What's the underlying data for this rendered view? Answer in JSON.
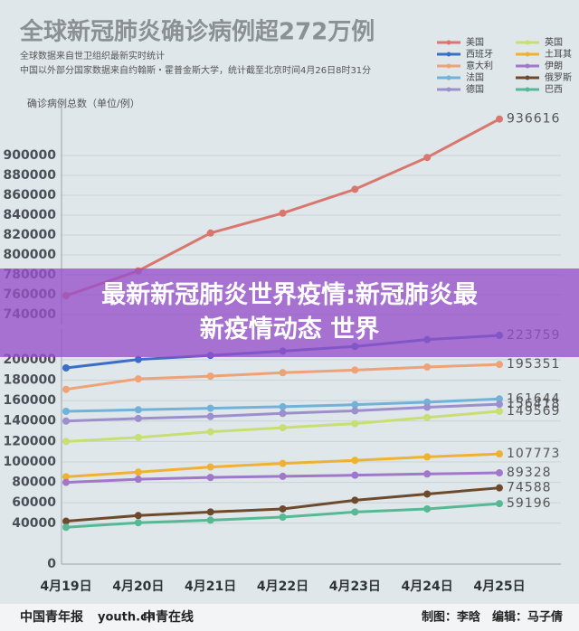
{
  "chart_data": {
    "type": "line",
    "title": "全球新冠肺炎确诊病例超272万例",
    "subtitle": [
      "全球数据来自世卫组织最新实时统计",
      "中国以外部分国家数据来自约翰斯・霍普金斯大学，统计截至北京时间4月26日8时31分"
    ],
    "y_axis_label": "确诊病例总数（单位/例）",
    "categories": [
      "4月19日",
      "4月20日",
      "4月21日",
      "4月22日",
      "4月23日",
      "4月24日",
      "4月25日"
    ],
    "ylim_upper": [
      730000,
      940000
    ],
    "yticks_upper": [
      740000,
      760000,
      780000,
      800000,
      820000,
      840000,
      860000,
      880000,
      900000
    ],
    "ylim_lower": [
      0,
      230000
    ],
    "yticks_lower": [
      0,
      40000,
      60000,
      80000,
      100000,
      120000,
      140000,
      160000,
      180000,
      200000
    ],
    "grid": true,
    "series": [
      {
        "name": "美国",
        "color": "#d9776e",
        "values": [
          759000,
          784000,
          822000,
          842000,
          866000,
          898000,
          936616
        ]
      },
      {
        "name": "西班牙",
        "color": "#3b6fc6",
        "values": [
          192000,
          200200,
          204200,
          208400,
          213000,
          219700,
          223759
        ]
      },
      {
        "name": "意大利",
        "color": "#eea276",
        "values": [
          171000,
          181200,
          183900,
          187300,
          189900,
          192900,
          195351
        ]
      },
      {
        "name": "法国",
        "color": "#72b2d8",
        "values": [
          149500,
          151000,
          152500,
          154000,
          156000,
          158500,
          161644
        ]
      },
      {
        "name": "德国",
        "color": "#9c8fcb",
        "values": [
          140000,
          142500,
          144500,
          147500,
          150000,
          153500,
          156418
        ]
      },
      {
        "name": "英国",
        "color": "#c9de72",
        "values": [
          120000,
          124000,
          129500,
          133500,
          137500,
          143500,
          149569
        ]
      },
      {
        "name": "土耳其",
        "color": "#efb230",
        "values": [
          85500,
          90000,
          95000,
          98500,
          101500,
          104900,
          107773
        ]
      },
      {
        "name": "伊朗",
        "color": "#a177c9",
        "values": [
          80000,
          83000,
          84800,
          85900,
          87000,
          88194,
          89328
        ]
      },
      {
        "name": "俄罗斯",
        "color": "#6e4a2c",
        "values": [
          42000,
          47500,
          51000,
          54000,
          62500,
          68600,
          74588
        ]
      },
      {
        "name": "巴西",
        "color": "#56b994",
        "values": [
          36000,
          40500,
          43000,
          46000,
          51000,
          54000,
          59196
        ]
      }
    ]
  },
  "banner": [
    "最新新冠肺炎世界疫情:新冠肺炎最",
    "新疫情动态 世界"
  ],
  "footer": {
    "logos": [
      "中国青年报",
      "youth.cn",
      "中青在线"
    ],
    "credits": "制图：李晗　编辑：马子倩"
  }
}
